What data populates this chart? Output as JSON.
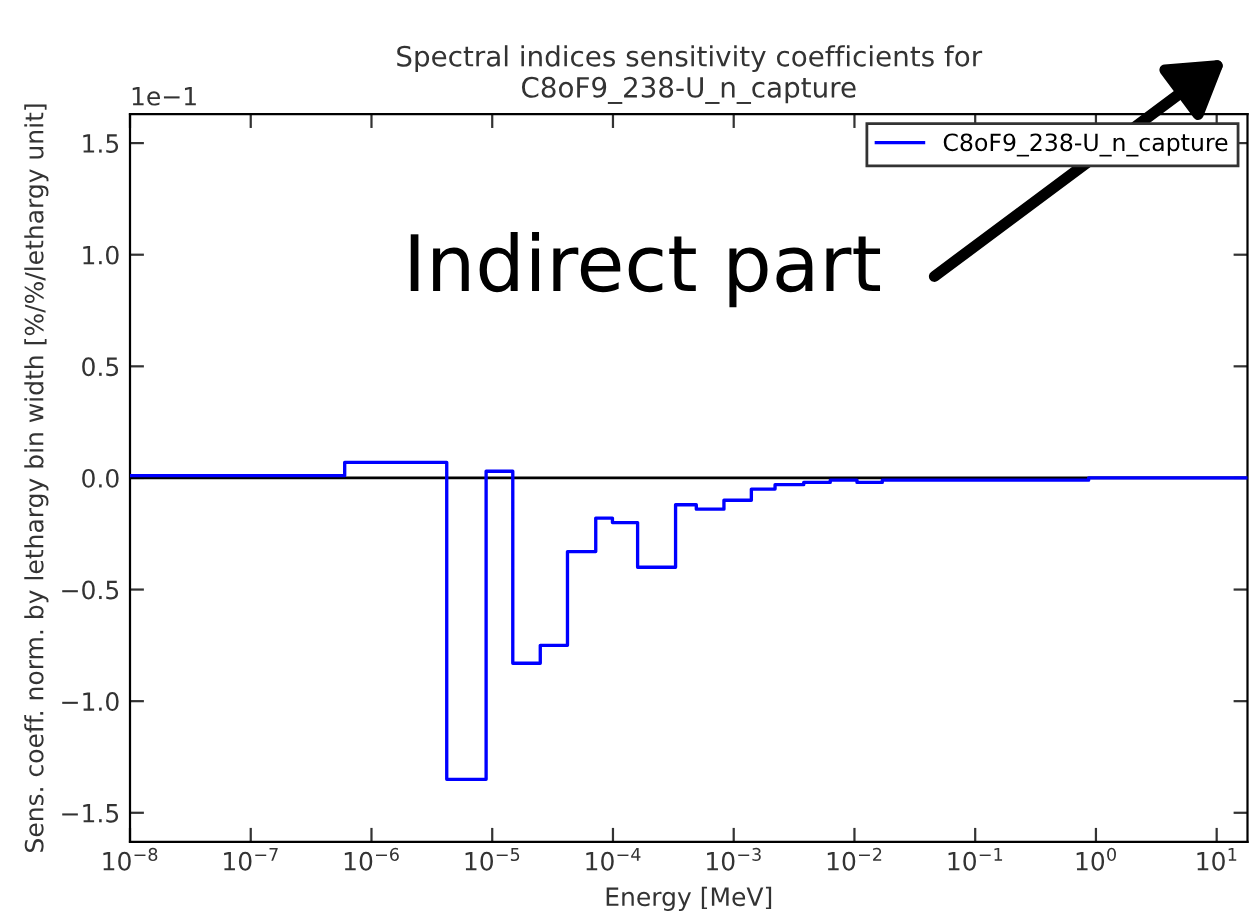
{
  "chart_data": {
    "type": "step",
    "title": "Spectral indices sensitivity coefficients for\nC8oF9_238-U_n_capture",
    "xlabel": "Energy [MeV]",
    "ylabel": "Sens. coeff. norm. by lethargy bin width [%/%/lethargy unit]",
    "log": "x",
    "series": [
      {
        "name": "C8oF9_238-U_n_capture",
        "color": "#0000ff",
        "x": [
          1e-08,
          6e-07,
          4.2e-06,
          8.9e-06,
          1.48e-05,
          2.5e-05,
          4.2e-05,
          7.2e-05,
          9.9e-05,
          0.00016,
          0.00033,
          0.00049,
          0.00083,
          0.0014,
          0.0022,
          0.0038,
          0.0063,
          0.0105,
          0.017,
          0.16,
          0.87,
          18
        ],
        "values": [
          0.01,
          0.07,
          -1.35,
          0.03,
          -0.83,
          -0.75,
          -0.33,
          -0.18,
          -0.2,
          -0.4,
          -0.12,
          -0.14,
          -0.1,
          -0.05,
          -0.03,
          -0.02,
          -0.01,
          -0.02,
          -0.01,
          -0.01,
          0,
          0
        ]
      }
    ],
    "xlim": [
      1e-08,
      18
    ],
    "ylim": [
      -1.63,
      1.63
    ],
    "xticks": [
      {
        "value": 1e-08,
        "label": "10$^{−8}$"
      },
      {
        "value": 1e-07,
        "label": "10$^{−7}$"
      },
      {
        "value": 1e-06,
        "label": "10$^{−6}$"
      },
      {
        "value": 1e-05,
        "label": "10$^{−5}$"
      },
      {
        "value": 0.0001,
        "label": "10$^{−4}$"
      },
      {
        "value": 0.001,
        "label": "10$^{−3}$"
      },
      {
        "value": 0.01,
        "label": "10$^{−2}$"
      },
      {
        "value": 0.1,
        "label": "10$^{−1}$"
      },
      {
        "value": 1,
        "label": "10$^{0}$"
      },
      {
        "value": 10,
        "label": "10$^{1}$"
      }
    ],
    "yticks": [
      {
        "value": -1.5,
        "label": "−1.5"
      },
      {
        "value": -1.0,
        "label": "−1.0"
      },
      {
        "value": -0.5,
        "label": "−0.5"
      },
      {
        "value": 0,
        "label": "0.0"
      },
      0.5,
      {
        "value": 1,
        "label": "1.0"
      },
      1.5
    ],
    "ref_lines": [
      {
        "axis": "y",
        "value": 0,
        "color": "#000000"
      }
    ],
    "annotations": [
      "1e−1",
      {
        "text": "Indirect part"
      }
    ],
    "legend": "top right",
    "line_style": "solid",
    "marker": "none",
    "grid": false
  }
}
